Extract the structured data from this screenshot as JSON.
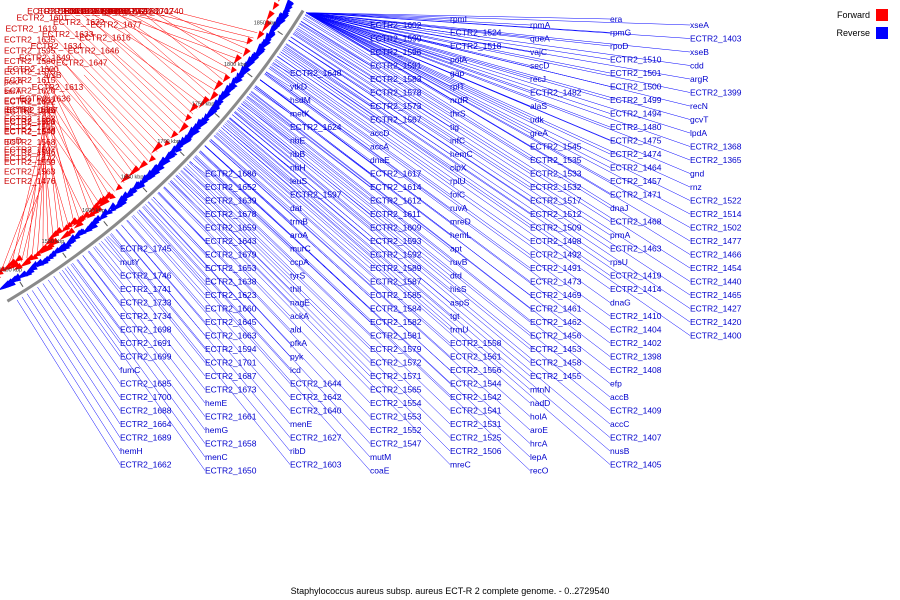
{
  "caption": "Staphylococcus aureus subsp. aureus ECT-R 2 complete genome. - 0..2729540",
  "colors": {
    "forward": "#ff0000",
    "reverse": "#0000ff",
    "backbone": "#8a8a8a",
    "forward_text": "#cc0000",
    "reverse_text": "#0000cc"
  },
  "legend": [
    {
      "label": "Forward",
      "color": "#ff0000"
    },
    {
      "label": "Reverse",
      "color": "#0000ff"
    }
  ],
  "ticks": [
    {
      "label": "1850 kbp",
      "pos": 1850
    },
    {
      "label": "1800 kbp",
      "pos": 1800
    },
    {
      "label": "1750 kbp",
      "pos": 1750
    },
    {
      "label": "1700 kbp",
      "pos": 1700
    },
    {
      "label": "1650 kbp",
      "pos": 1650
    },
    {
      "label": "1600 kbp",
      "pos": 1600
    },
    {
      "label": "1550 kbp",
      "pos": 1550
    },
    {
      "label": "1500 kbp",
      "pos": 1500
    }
  ],
  "genes": {
    "reverse": [
      "ECTR2_1745",
      "mutY",
      "ECTR2_1746",
      "ECTR2_1741",
      "ECTR2_1733",
      "ECTR2_1734",
      "ECTR2_1698",
      "ECTR2_1691",
      "ECTR2_1699",
      "fumC",
      "ECTR2_1685",
      "ECTR2_1700",
      "ECTR2_1688",
      "ECTR2_1664",
      "ECTR2_1689",
      "hemH",
      "ECTR2_1662",
      "ECTR2_1686",
      "ECTR2_1652",
      "ECTR2_1639",
      "ECTR2_1678",
      "ECTR2_1659",
      "ECTR2_1643",
      "ECTR2_1679",
      "ECTR2_1653",
      "ECTR2_1638",
      "ECTR2_1623",
      "ECTR2_1660",
      "ECTR2_1645",
      "ECTR2_1663",
      "ECTR2_1594",
      "ECTR2_1701",
      "ECTR2_1687",
      "ECTR2_1673",
      "hemE",
      "ECTR2_1661",
      "hemG",
      "ECTR2_1658",
      "menC",
      "ECTR2_1650",
      "ECTR2_1648",
      "ytkD",
      "hsdM",
      "metK",
      "ECTR2_1624",
      "ribE",
      "ribB",
      "ribH",
      "leuS",
      "ECTR2_1597",
      "dat",
      "trmB",
      "aroA",
      "murC",
      "ccpA",
      "tyrS",
      "thiI",
      "nagE",
      "ackA",
      "ald",
      "pfkA",
      "pyk",
      "icd",
      "ECTR2_1644",
      "ECTR2_1642",
      "ECTR2_1640",
      "menE",
      "ECTR2_1627",
      "ribD",
      "ECTR2_1603",
      "ECTR2_1602",
      "ECTR2_1599",
      "ECTR2_1596",
      "ECTR2_1591",
      "ECTR2_1583",
      "ECTR2_1578",
      "ECTR2_1573",
      "ECTR2_1567",
      "accD",
      "accA",
      "dnaE",
      "ECTR2_1617",
      "ECTR2_1614",
      "ECTR2_1612",
      "ECTR2_1611",
      "ECTR2_1609",
      "ECTR2_1593",
      "ECTR2_1592",
      "ECTR2_1589",
      "ECTR2_1587",
      "ECTR2_1585",
      "ECTR2_1584",
      "ECTR2_1582",
      "ECTR2_1581",
      "ECTR2_1579",
      "ECTR2_1572",
      "ECTR2_1571",
      "ECTR2_1565",
      "ECTR2_1554",
      "ECTR2_1553",
      "ECTR2_1552",
      "ECTR2_1547",
      "mutM",
      "coaE",
      "rpmI",
      "ECTR2_1524",
      "ECTR2_1518",
      "polA",
      "gap",
      "rplT",
      "nrdR",
      "thrS",
      "tig",
      "infC",
      "hemC",
      "clpX",
      "rplU",
      "folC",
      "ruvA",
      "mreD",
      "hemL",
      "apt",
      "ruvB",
      "dtd",
      "hisS",
      "aspS",
      "tgt",
      "trmU",
      "ECTR2_1558",
      "ECTR2_1561",
      "ECTR2_1556",
      "ECTR2_1544",
      "ECTR2_1542",
      "ECTR2_1541",
      "ECTR2_1531",
      "ECTR2_1525",
      "ECTR2_1506",
      "mreC",
      "rpmA",
      "queA",
      "vajC",
      "secD",
      "recJ",
      "ECTR2_1482",
      "alaS",
      "udk",
      "greA",
      "ECTR2_1545",
      "ECTR2_1535",
      "ECTR2_1533",
      "ECTR2_1532",
      "ECTR2_1517",
      "ECTR2_1512",
      "ECTR2_1509",
      "ECTR2_1498",
      "ECTR2_1492",
      "ECTR2_1491",
      "ECTR2_1473",
      "ECTR2_1469",
      "ECTR2_1461",
      "ECTR2_1462",
      "ECTR2_1456",
      "ECTR2_1453",
      "ECTR2_1458",
      "ECTR2_1455",
      "mtnN",
      "nadD",
      "holA",
      "aroE",
      "hrcA",
      "lepA",
      "recO",
      "era",
      "rpmG",
      "rpoD",
      "ECTR2_1510",
      "ECTR2_1501",
      "ECTR2_1500",
      "ECTR2_1499",
      "ECTR2_1494",
      "ECTR2_1480",
      "ECTR2_1475",
      "ECTR2_1474",
      "ECTR2_1464",
      "ECTR2_1457",
      "ECTR2_1471",
      "dnaJ",
      "ECTR2_1468",
      "prmA",
      "ECTR2_1463",
      "rpsU",
      "ECTR2_1419",
      "ECTR2_1414",
      "dnaG",
      "ECTR2_1410",
      "ECTR2_1404",
      "ECTR2_1402",
      "ECTR2_1398",
      "ECTR2_1408",
      "efp",
      "accB",
      "ECTR2_1409",
      "accC",
      "ECTR2_1407",
      "nusB",
      "ECTR2_1405",
      "xseA",
      "ECTR2_1403",
      "xseB",
      "cdd",
      "argR",
      "ECTR2_1399",
      "recN",
      "gcvT",
      "lpdA",
      "ECTR2_1368",
      "ECTR2_1365",
      "gnd",
      "rnz",
      "ECTR2_1522",
      "ECTR2_1514",
      "ECTR2_1502",
      "ECTR2_1477",
      "ECTR2_1466",
      "ECTR2_1454",
      "ECTR2_1440",
      "ECTR2_1465",
      "ECTR2_1427",
      "ECTR2_1420",
      "ECTR2_1400"
    ],
    "forward": [
      "ECTR2_1740",
      "hemL",
      "ECTR2_1736",
      "ECTR2_1702",
      "ECTR2_1732",
      "ECTR2_1681",
      "ECTR2_1680",
      "ECTR2_1657",
      "ECTR2_1692",
      "ECTR2_1682",
      "ECTR2_1683",
      "ECTR2_1651",
      "ECTR2_1677",
      "ECTR2_1630",
      "ECTR2_1618",
      "ECTR2_1616",
      "ECTR2_1632",
      "ECTR2_1604",
      "ECTR2_1646",
      "ECTR2_1633",
      "ECTR2_1601",
      "ECTR2_1647",
      "ECTR2_1634",
      "ECTR2_1619",
      "arsB",
      "ECTR2_1649",
      "ECTR2_1635",
      "ECTR2_1613",
      "ECTR2_1600",
      "ECTR2_1595",
      "ECTR2_1636",
      "ECTR2_1615",
      "ECTR2_1586",
      "ECTR2_1637",
      "ECTR2_1620",
      "ECTR2_1575",
      "ECTR2_1621",
      "ECTR2_1622",
      "pckA",
      "ECTR2_1570",
      "ECTR2_1574",
      "serA",
      "ECTR2_1568",
      "ECTR2_1550",
      "ECTR2_1557",
      "ECTR2_1546",
      "ECTR2_1548",
      "ECTR2_1536",
      "ECTR2_1559",
      "rpsD",
      "ECTR2_1562",
      "ECTR2_1563",
      "ECTR2_1507",
      "ECTR2_1505",
      "ECTR2_1476",
      "ECTR2_1472"
    ]
  }
}
